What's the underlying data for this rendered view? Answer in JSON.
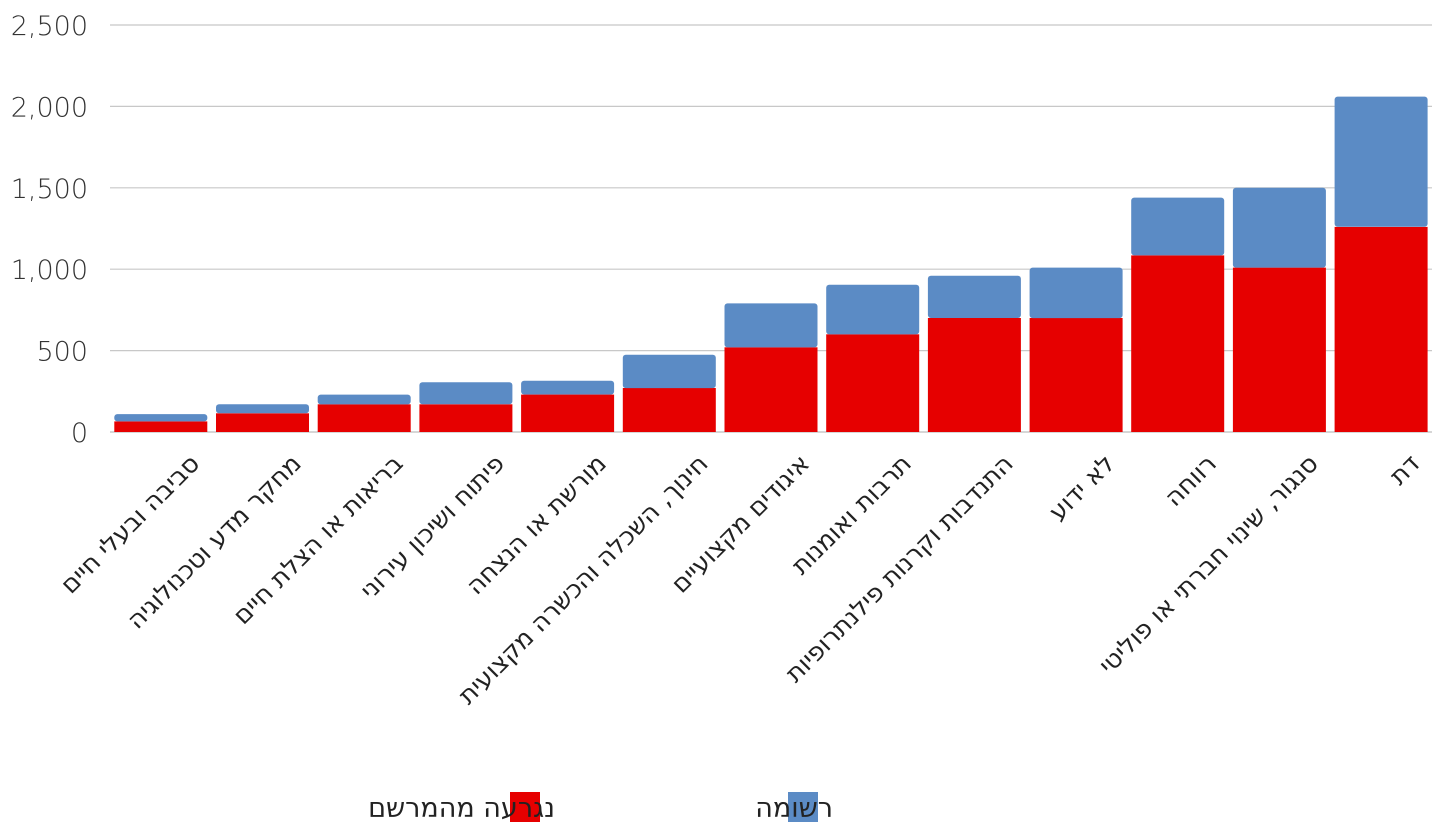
{
  "chart_data": {
    "type": "bar",
    "stacked": true,
    "categories": [
      "סביבה ובעלי חיים",
      "מחקר מדע וטכנולוגיה",
      "בריאות או הצלת חיים",
      "פיתוח ושיכון עירוני",
      "מורשת או הנצחה",
      "חינוך, השכלה והכשרה מקצועית",
      "איגודים מקצועיים",
      "תרבות ואומנות",
      "התנדבות וקרנות פילנתרופיות",
      "לא ידוע",
      "רווחה",
      "סנגור, שינוי חברתי או פוליטי",
      "דת"
    ],
    "series": [
      {
        "name": "נגרעה מהמרשם",
        "color": "#e60000",
        "values": [
          65,
          115,
          170,
          170,
          230,
          270,
          520,
          600,
          700,
          700,
          1085,
          1010,
          1260
        ]
      },
      {
        "name": "רשומה",
        "color": "#5b8bc5",
        "values": [
          45,
          55,
          60,
          135,
          85,
          205,
          270,
          305,
          260,
          310,
          355,
          490,
          800
        ]
      }
    ],
    "y_ticks": [
      "0",
      "500",
      "1,000",
      "1,500",
      "2,000",
      "2,500"
    ],
    "ylim": [
      0,
      2500
    ],
    "grid": true,
    "legend_position": "bottom",
    "title": "",
    "xlabel": "",
    "ylabel": ""
  }
}
